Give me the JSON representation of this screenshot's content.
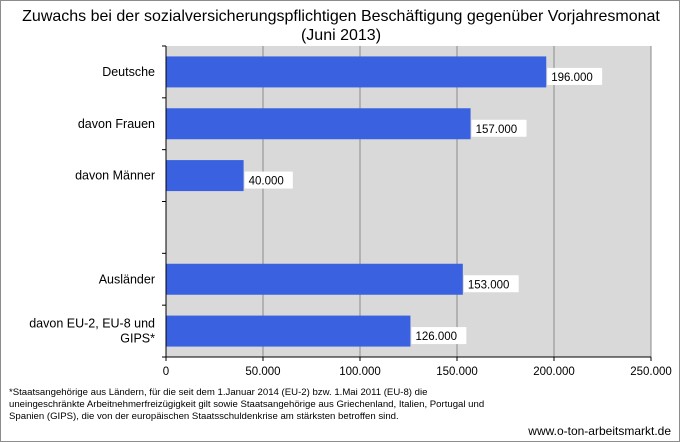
{
  "chart_data": {
    "type": "bar",
    "orientation": "horizontal",
    "title": "Zuwachs bei der sozialversicherungspflichtigen Beschäftigung gegenüber Vorjahresmonat (Juni 2013)",
    "categories": [
      [
        "Deutsche"
      ],
      [
        "davon Frauen"
      ],
      [
        "davon Männer"
      ],
      [
        ""
      ],
      [
        "Ausländer"
      ],
      [
        "davon EU-2, EU-8 und",
        "GIPS*"
      ]
    ],
    "values": [
      196000,
      157000,
      40000,
      null,
      153000,
      126000
    ],
    "data_labels": [
      "196.000",
      "157.000",
      "40.000",
      "",
      "153.000",
      "126.000"
    ],
    "xlim": [
      0,
      250000
    ],
    "xticks": [
      0,
      50000,
      100000,
      150000,
      200000,
      250000
    ],
    "xtick_labels": [
      "0",
      "50.000",
      "100.000",
      "150.000",
      "200.000",
      "250.000"
    ],
    "xlabel": "",
    "ylabel": "",
    "grid": true,
    "legend": "none",
    "bar_color": "#3a62e0",
    "plot_background": "#d9d9d9"
  },
  "footnote": "*Staatsangehörige aus Ländern, für die seit dem 1.Januar 2014 (EU-2) bzw. 1.Mai 2011 (EU-8) die uneingeschränkte Arbeitnehmerfreizügigkeit gilt sowie Staatsangehörige aus Griechenland, Italien, Portugal und Spanien (GIPS), die von der europäischen Staatsschuldenkrise am stärksten betroffen sind.",
  "source": "www.o-ton-arbeitsmarkt.de"
}
